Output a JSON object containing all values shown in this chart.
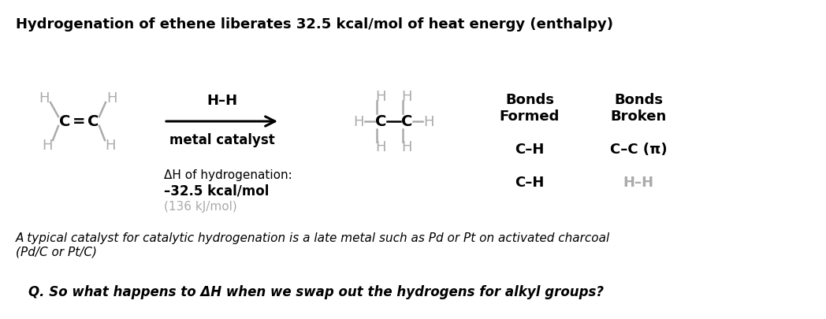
{
  "title": "Hydrogenation of ethene liberates 32.5 kcal/mol of heat energy (enthalpy)",
  "background_color": "#ffffff",
  "H_color": "#aaaaaa",
  "C_color": "#000000",
  "italic_note": "A typical catalyst for catalytic hydrogenation is a late metal such as Pd or Pt on activated charcoal\n(Pd/C or Pt/C)",
  "question": "Q. So what happens to ΔH when we swap out the hydrogens for alkyl groups?"
}
